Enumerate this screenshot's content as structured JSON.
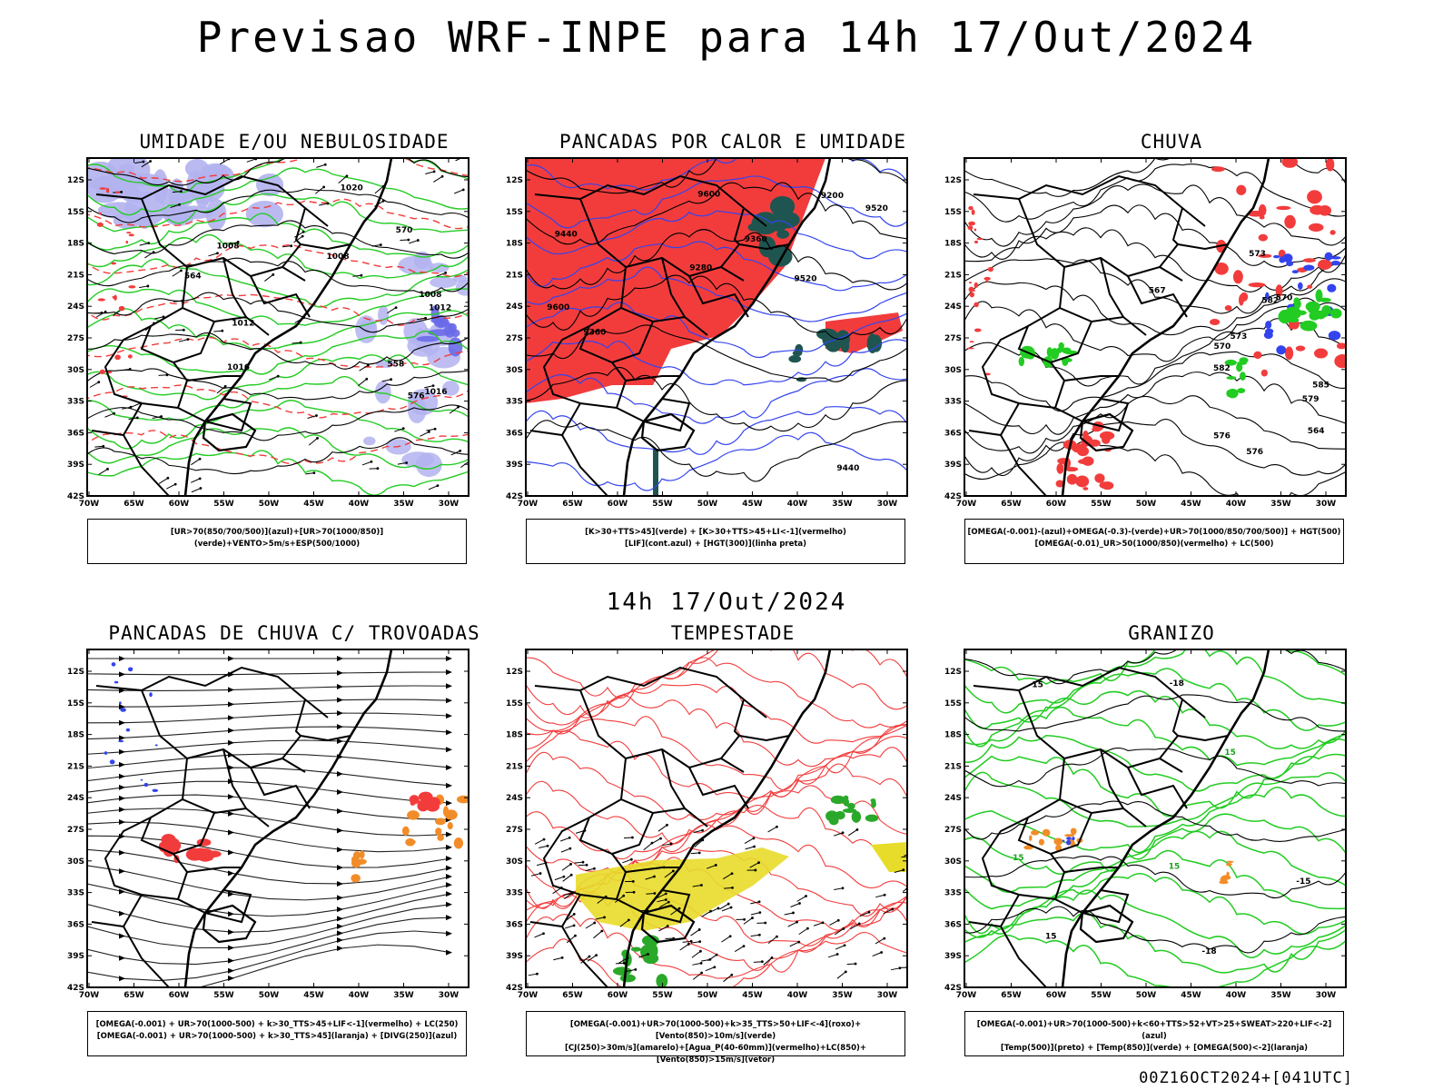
{
  "header": {
    "title": "Previsao WRF-INPE  para 14h 17/Out/2024"
  },
  "mid_title": "14h 17/Out/2024",
  "footer": "00Z16OCT2024+[041UTC]",
  "axes": {
    "lat_labels": [
      "12S",
      "15S",
      "18S",
      "21S",
      "24S",
      "27S",
      "30S",
      "33S",
      "36S",
      "39S",
      "42S"
    ],
    "lon_labels": [
      "70W",
      "65W",
      "60W",
      "55W",
      "50W",
      "45W",
      "40W",
      "35W",
      "30W"
    ]
  },
  "colors": {
    "red": "#f23c3c",
    "green": "#22cc22",
    "blue": "#3344ee",
    "lavender": "#b3b3f0",
    "teal": "#1f5550",
    "orange": "#f28c28",
    "yellow": "#e8dc2a"
  },
  "panels": [
    {
      "id": "umidade",
      "title": "UMIDADE E/OU NEBULOSIDADE",
      "legend": [
        "[UR>70(850/700/500)](azul)+[UR>70(1000/850)](verde)+VENTO>5m/s+ESP(500/1000)"
      ],
      "contour_labels": [
        "1008",
        "1008",
        "1008",
        "1012",
        "1012",
        "1016",
        "1016",
        "1020",
        "576",
        "570",
        "564",
        "558"
      ]
    },
    {
      "id": "pancadas-calor",
      "title": "PANCADAS POR CALOR E UMIDADE",
      "legend": [
        "[K>30+TTS>45](verde) + [K>30+TTS>45+LI<-1](vermelho)",
        "[LIF](cont.azul) + [HGT(300)](linha preta)"
      ],
      "contour_labels": [
        "9600",
        "9600",
        "9520",
        "9520",
        "9440",
        "9440",
        "9360",
        "9360",
        "9280",
        "9200"
      ]
    },
    {
      "id": "chuva",
      "title": "CHUVA",
      "legend": [
        "[OMEGA(-0.001)-(azul)+OMEGA(-0.3)-(verde)+UR>70(1000/850/700/500)] + HGT(500)",
        "[OMEGA(-0.01)_UR>50(1000/850)(vermelho) + LC(500)"
      ],
      "contour_labels": [
        "582",
        "585",
        "582",
        "579",
        "576",
        "573",
        "570",
        "567",
        "564",
        "576",
        "573",
        "570"
      ]
    },
    {
      "id": "trovoadas",
      "title": "PANCADAS DE CHUVA C/ TROVOADAS",
      "legend": [
        "[OMEGA(-0.001) + UR>70(1000-500) + k>30_TTS>45+LIF<-1](vermelho) + LC(250)",
        "[OMEGA(-0.001) + UR>70(1000-500) + k>30_TTS>45](laranja) + [DIVG(250)](azul)"
      ],
      "contour_labels": []
    },
    {
      "id": "tempestade",
      "title": "TEMPESTADE",
      "legend": [
        "[OMEGA(-0.001)+UR>70(1000-500)+k>35_TTS>50+LIF<-4](roxo)+[Vento(850)>10m/s](verde)",
        "[CJ(250)>30m/s](amarelo)+[Agua_P(40-60mm)](vermelho)+LC(850)+[Vento(850)>15m/s](vetor)"
      ],
      "contour_labels": []
    },
    {
      "id": "granizo",
      "title": "GRANIZO",
      "legend": [
        "[OMEGA(-0.001)+UR>70(1000-500)+k<60+TTS>52+VT>25+SWEAT>220+LIF<-2](azul)",
        "[Temp(500)](preto) + [Temp(850)](verde) + [OMEGA(500)<-2](laranja)"
      ],
      "contour_labels": [
        "15",
        "15",
        "15",
        "-15",
        "-18",
        "-18",
        "-15",
        "15"
      ]
    }
  ]
}
